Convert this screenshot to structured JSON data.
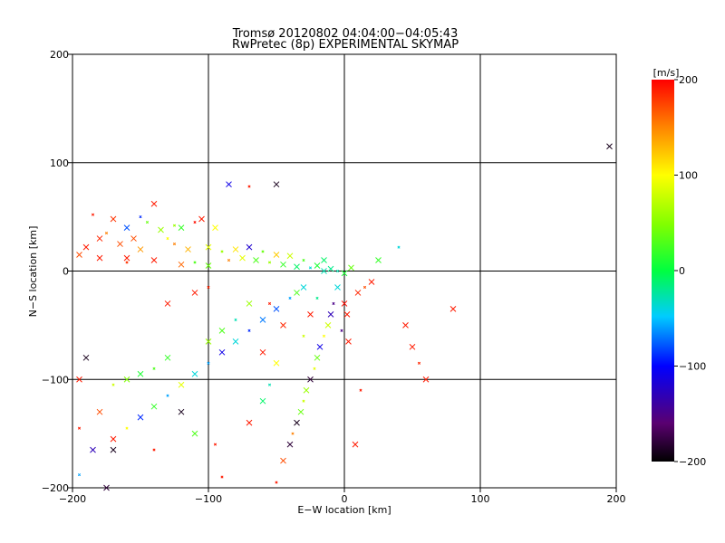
{
  "chart_data": {
    "type": "scatter",
    "title": "Tromsø 20120802 04:04:00−04:05:43",
    "subtitle": "RwPretec (8p) EXPERIMENTAL SKYMAP",
    "xlabel": "E−W location [km]",
    "ylabel": "N−S location [km]",
    "xlim": [
      -200,
      200
    ],
    "ylim": [
      -200,
      200
    ],
    "xticks": [
      -200,
      -100,
      0,
      100,
      200
    ],
    "yticks": [
      -200,
      -100,
      0,
      100,
      200
    ],
    "grid": true,
    "colorbar": {
      "label": "[m/s]",
      "range": [
        -200,
        200
      ],
      "ticks": [
        -200,
        -100,
        0,
        100,
        200
      ]
    },
    "points": [
      {
        "x": -185,
        "y": 52,
        "v": 190
      },
      {
        "x": -170,
        "y": 48,
        "v": 180
      },
      {
        "x": -160,
        "y": 40,
        "v": -80
      },
      {
        "x": -145,
        "y": 45,
        "v": 40
      },
      {
        "x": -140,
        "y": 62,
        "v": 190
      },
      {
        "x": -190,
        "y": 22,
        "v": 190
      },
      {
        "x": -175,
        "y": 35,
        "v": 150
      },
      {
        "x": -155,
        "y": 30,
        "v": 170
      },
      {
        "x": -135,
        "y": 38,
        "v": 60
      },
      {
        "x": -110,
        "y": 45,
        "v": 195
      },
      {
        "x": -105,
        "y": 48,
        "v": 190
      },
      {
        "x": -95,
        "y": 40,
        "v": 100
      },
      {
        "x": -125,
        "y": 25,
        "v": 150
      },
      {
        "x": -115,
        "y": 20,
        "v": 130
      },
      {
        "x": -100,
        "y": 22,
        "v": 90
      },
      {
        "x": -90,
        "y": 18,
        "v": 60
      },
      {
        "x": -80,
        "y": 20,
        "v": 110
      },
      {
        "x": -70,
        "y": 22,
        "v": -120
      },
      {
        "x": -60,
        "y": 18,
        "v": 40
      },
      {
        "x": -50,
        "y": 15,
        "v": 120
      },
      {
        "x": -40,
        "y": 14,
        "v": 80
      },
      {
        "x": -30,
        "y": 10,
        "v": 30
      },
      {
        "x": -20,
        "y": 5,
        "v": 10
      },
      {
        "x": -10,
        "y": 2,
        "v": -20
      },
      {
        "x": -5,
        "y": 0,
        "v": -30
      },
      {
        "x": 0,
        "y": -2,
        "v": 10
      },
      {
        "x": 5,
        "y": 3,
        "v": 40
      },
      {
        "x": -85,
        "y": 10,
        "v": 150
      },
      {
        "x": -75,
        "y": 12,
        "v": 90
      },
      {
        "x": -65,
        "y": 10,
        "v": 30
      },
      {
        "x": -55,
        "y": 8,
        "v": 60
      },
      {
        "x": -45,
        "y": 6,
        "v": 20
      },
      {
        "x": -35,
        "y": 4,
        "v": -10
      },
      {
        "x": -25,
        "y": 3,
        "v": -40
      },
      {
        "x": -15,
        "y": 0,
        "v": -30
      },
      {
        "x": -100,
        "y": 5,
        "v": 40
      },
      {
        "x": -110,
        "y": 8,
        "v": 30
      },
      {
        "x": -120,
        "y": 6,
        "v": 160
      },
      {
        "x": -140,
        "y": 10,
        "v": 190
      },
      {
        "x": -160,
        "y": 8,
        "v": 180
      },
      {
        "x": -180,
        "y": 12,
        "v": 190
      },
      {
        "x": -195,
        "y": 15,
        "v": 170
      },
      {
        "x": -70,
        "y": 78,
        "v": 190
      },
      {
        "x": -85,
        "y": 80,
        "v": -110
      },
      {
        "x": -50,
        "y": 80,
        "v": -190
      },
      {
        "x": 40,
        "y": 22,
        "v": -40
      },
      {
        "x": 25,
        "y": 10,
        "v": 20
      },
      {
        "x": 20,
        "y": -10,
        "v": 190
      },
      {
        "x": 15,
        "y": -15,
        "v": 170
      },
      {
        "x": 10,
        "y": -20,
        "v": 185
      },
      {
        "x": -5,
        "y": -15,
        "v": -40
      },
      {
        "x": -8,
        "y": -30,
        "v": -150
      },
      {
        "x": -10,
        "y": -40,
        "v": -130
      },
      {
        "x": -12,
        "y": -50,
        "v": 80
      },
      {
        "x": -15,
        "y": -60,
        "v": 100
      },
      {
        "x": -18,
        "y": -70,
        "v": -110
      },
      {
        "x": -20,
        "y": -80,
        "v": 40
      },
      {
        "x": -22,
        "y": -90,
        "v": 90
      },
      {
        "x": -25,
        "y": -100,
        "v": -180
      },
      {
        "x": -28,
        "y": -110,
        "v": 60
      },
      {
        "x": -30,
        "y": -120,
        "v": 80
      },
      {
        "x": -32,
        "y": -130,
        "v": 40
      },
      {
        "x": -35,
        "y": -140,
        "v": -190
      },
      {
        "x": -38,
        "y": -150,
        "v": 150
      },
      {
        "x": -40,
        "y": -160,
        "v": -180
      },
      {
        "x": -45,
        "y": -175,
        "v": 170
      },
      {
        "x": -50,
        "y": -195,
        "v": 190
      },
      {
        "x": 0,
        "y": -30,
        "v": 195
      },
      {
        "x": 2,
        "y": -40,
        "v": 190
      },
      {
        "x": -2,
        "y": -55,
        "v": -150
      },
      {
        "x": 3,
        "y": -65,
        "v": 190
      },
      {
        "x": -30,
        "y": -15,
        "v": -40
      },
      {
        "x": -40,
        "y": -25,
        "v": -60
      },
      {
        "x": -50,
        "y": -35,
        "v": -80
      },
      {
        "x": -60,
        "y": -45,
        "v": -70
      },
      {
        "x": -70,
        "y": -55,
        "v": -90
      },
      {
        "x": -80,
        "y": -65,
        "v": -40
      },
      {
        "x": -90,
        "y": -75,
        "v": -110
      },
      {
        "x": -100,
        "y": -85,
        "v": -60
      },
      {
        "x": -110,
        "y": -95,
        "v": -40
      },
      {
        "x": -120,
        "y": -105,
        "v": 90
      },
      {
        "x": -130,
        "y": -115,
        "v": -60
      },
      {
        "x": -140,
        "y": -125,
        "v": 20
      },
      {
        "x": -150,
        "y": -135,
        "v": -90
      },
      {
        "x": -160,
        "y": -145,
        "v": 100
      },
      {
        "x": -170,
        "y": -155,
        "v": 190
      },
      {
        "x": -185,
        "y": -165,
        "v": -130
      },
      {
        "x": -195,
        "y": -188,
        "v": -60
      },
      {
        "x": -175,
        "y": -200,
        "v": -180
      },
      {
        "x": -130,
        "y": -80,
        "v": 20
      },
      {
        "x": -140,
        "y": -90,
        "v": 30
      },
      {
        "x": -150,
        "y": -95,
        "v": 10
      },
      {
        "x": -160,
        "y": -100,
        "v": 50
      },
      {
        "x": -170,
        "y": -105,
        "v": 80
      },
      {
        "x": -100,
        "y": -65,
        "v": 60
      },
      {
        "x": -90,
        "y": -55,
        "v": 30
      },
      {
        "x": -80,
        "y": -45,
        "v": -30
      },
      {
        "x": -120,
        "y": -130,
        "v": -190
      },
      {
        "x": -110,
        "y": -150,
        "v": 30
      },
      {
        "x": -95,
        "y": -160,
        "v": 190
      },
      {
        "x": -180,
        "y": -130,
        "v": 170
      },
      {
        "x": -195,
        "y": -100,
        "v": 190
      },
      {
        "x": -195,
        "y": -145,
        "v": 190
      },
      {
        "x": -190,
        "y": -80,
        "v": -190
      },
      {
        "x": -170,
        "y": -165,
        "v": -190
      },
      {
        "x": -140,
        "y": -165,
        "v": 190
      },
      {
        "x": -60,
        "y": -75,
        "v": 190
      },
      {
        "x": -50,
        "y": -85,
        "v": 100
      },
      {
        "x": -30,
        "y": -60,
        "v": 80
      },
      {
        "x": -25,
        "y": -40,
        "v": 190
      },
      {
        "x": -45,
        "y": -50,
        "v": 185
      },
      {
        "x": -55,
        "y": -30,
        "v": 190
      },
      {
        "x": -130,
        "y": -30,
        "v": 190
      },
      {
        "x": -110,
        "y": -20,
        "v": 190
      },
      {
        "x": -100,
        "y": -15,
        "v": 185
      },
      {
        "x": 45,
        "y": -50,
        "v": 190
      },
      {
        "x": 50,
        "y": -70,
        "v": 190
      },
      {
        "x": 55,
        "y": -85,
        "v": 185
      },
      {
        "x": 60,
        "y": -100,
        "v": 190
      },
      {
        "x": 80,
        "y": -35,
        "v": 190
      },
      {
        "x": 12,
        "y": -110,
        "v": 190
      },
      {
        "x": 8,
        "y": -160,
        "v": 190
      },
      {
        "x": -70,
        "y": -140,
        "v": 190
      },
      {
        "x": -90,
        "y": -190,
        "v": 190
      },
      {
        "x": 195,
        "y": 115,
        "v": -190
      },
      {
        "x": -60,
        "y": -120,
        "v": -10
      },
      {
        "x": -55,
        "y": -105,
        "v": -30
      },
      {
        "x": -35,
        "y": -20,
        "v": 30
      },
      {
        "x": -70,
        "y": -30,
        "v": 60
      },
      {
        "x": -20,
        "y": -25,
        "v": -20
      },
      {
        "x": -15,
        "y": 10,
        "v": -10
      },
      {
        "x": -120,
        "y": 40,
        "v": 20
      },
      {
        "x": -125,
        "y": 42,
        "v": 60
      },
      {
        "x": -150,
        "y": 20,
        "v": 140
      },
      {
        "x": -165,
        "y": 25,
        "v": 170
      },
      {
        "x": -130,
        "y": 30,
        "v": 100
      },
      {
        "x": -160,
        "y": 12,
        "v": 190
      },
      {
        "x": -180,
        "y": 30,
        "v": 185
      },
      {
        "x": -150,
        "y": 50,
        "v": -90
      }
    ]
  }
}
